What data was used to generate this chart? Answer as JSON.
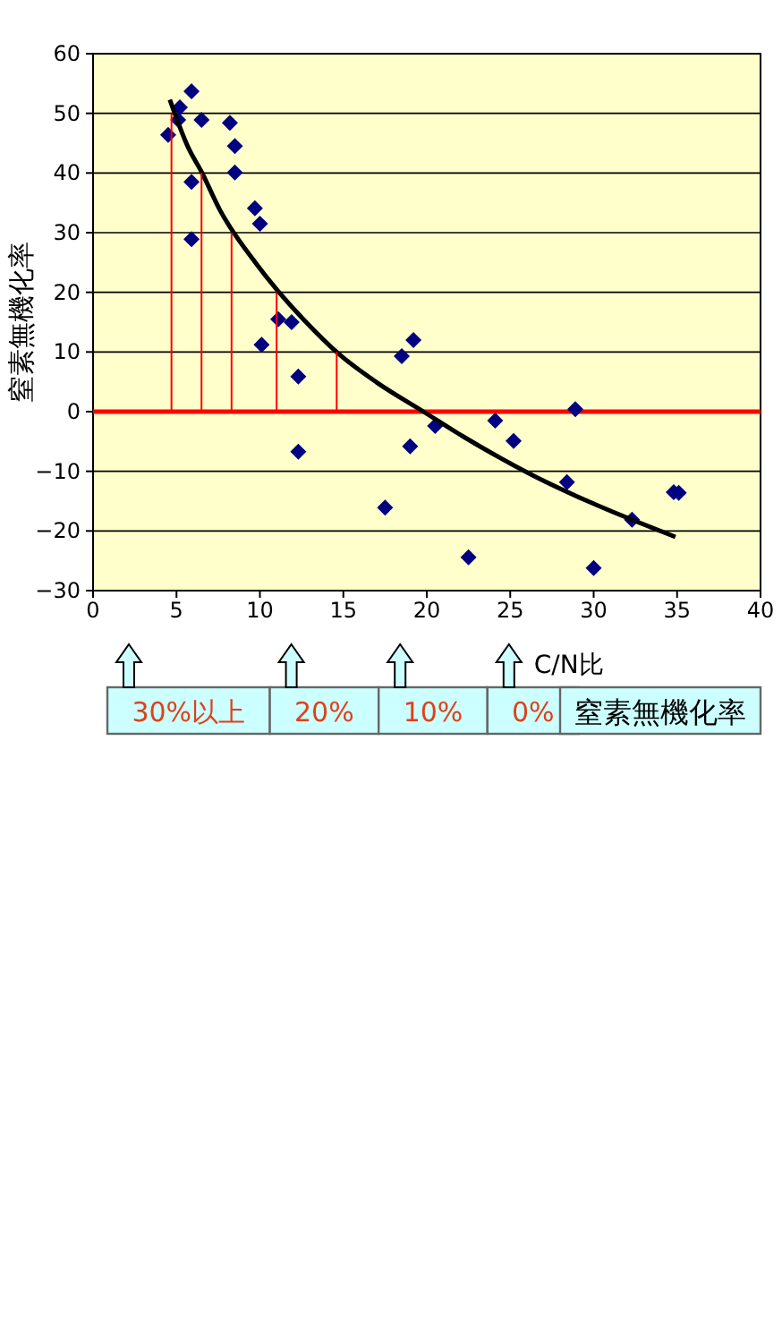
{
  "chart_data": {
    "type": "scatter",
    "title": "窒素無機化率",
    "xlabel": "C/N比",
    "ylabel": "窒素無機化率",
    "xlim": [
      0,
      40
    ],
    "xticks": [
      0,
      5,
      10,
      15,
      20,
      25,
      30,
      35,
      40
    ],
    "ylim": [
      -30,
      60
    ],
    "yticks": [
      -30,
      -20,
      -10,
      0,
      10,
      20,
      30,
      40,
      50,
      60
    ],
    "grid": "y",
    "series": [
      {
        "color": "#000080",
        "marker": "diamond",
        "x": [
          5.9,
          5.2,
          5.1,
          4.5,
          6.5,
          8.2,
          8.5,
          8.5,
          5.9,
          9.7,
          10.0,
          5.9,
          11.9,
          11.1,
          10.1,
          12.3,
          12.3,
          19.2,
          18.5,
          19.0,
          17.5,
          20.5,
          24.1,
          25.2,
          28.9,
          28.4,
          32.3,
          34.8,
          35.1,
          30.0,
          22.5
        ],
        "values": [
          53.7,
          51.0,
          48.9,
          46.4,
          48.9,
          48.4,
          44.5,
          40.1,
          38.5,
          34.1,
          31.5,
          28.9,
          15.0,
          15.5,
          11.2,
          5.9,
          -6.7,
          12.0,
          9.3,
          -5.8,
          -16.1,
          -2.4,
          -1.5,
          -4.9,
          0.4,
          -11.8,
          -18.1,
          -13.5,
          -13.6,
          -26.2,
          -24.4
        ]
      },
      {
        "type": "line",
        "color": "#000000",
        "marker": "none",
        "x": [
          4.6,
          5.7,
          6.5,
          7.6,
          9.7,
          11.0,
          12.6,
          14.8,
          17.0,
          19.8,
          22.2,
          26.3,
          29.8,
          34.9
        ],
        "values": [
          52.3,
          44.3,
          40.2,
          33.8,
          25.1,
          20.5,
          15.5,
          9.5,
          4.9,
          0,
          -4.2,
          -10.6,
          -15.2,
          -21.0
        ]
      },
      {
        "type": "line",
        "color": "#ff0000",
        "marker": "none",
        "x": [
          4.7,
          4.7
        ],
        "values": [
          0,
          50
        ]
      },
      {
        "type": "line",
        "color": "#ff0000",
        "marker": "none",
        "x": [
          6.5,
          6.5
        ],
        "values": [
          0,
          40
        ]
      },
      {
        "type": "line",
        "color": "#ff0000",
        "marker": "none",
        "x": [
          8.3,
          8.3
        ],
        "values": [
          0,
          30
        ]
      },
      {
        "type": "line",
        "color": "#ff0000",
        "marker": "none",
        "x": [
          11.0,
          11.0
        ],
        "values": [
          0,
          20
        ]
      },
      {
        "type": "line",
        "color": "#ff0000",
        "marker": "none",
        "x": [
          14.6,
          14.6
        ],
        "values": [
          0,
          10
        ]
      }
    ],
    "ref_lines": [
      {
        "axis": "y",
        "value": 0,
        "color": "#ff0000"
      }
    ],
    "annotations": [
      "30%以上",
      "20%",
      "10%",
      "0%"
    ]
  }
}
